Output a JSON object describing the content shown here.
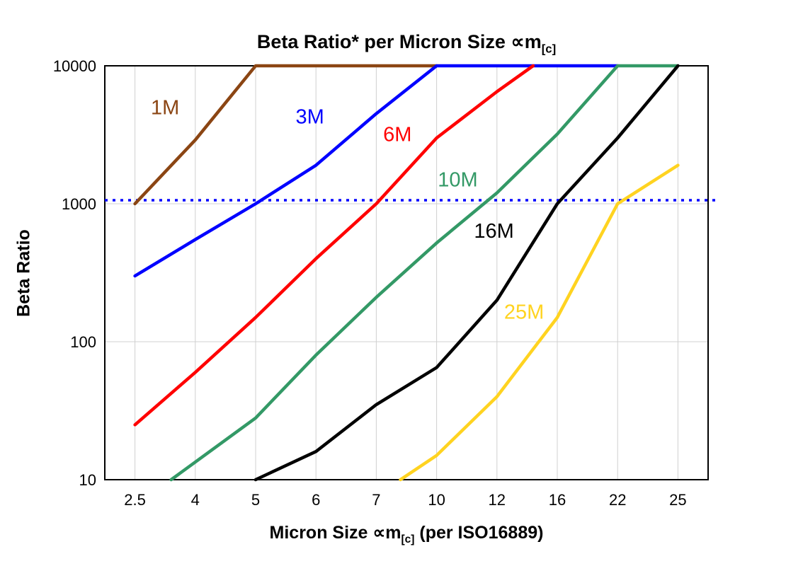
{
  "title": {
    "main": "Beta Ratio* per Micron Size ∝m",
    "sub": "[c]"
  },
  "x_axis": {
    "label_pre": "Micron Size ∝m",
    "label_sub": "[c]",
    "label_post": " (per ISO16889)",
    "categories": [
      "2.5",
      "4",
      "5",
      "6",
      "7",
      "10",
      "12",
      "16",
      "22",
      "25"
    ]
  },
  "y_axis": {
    "label": "Beta Ratio",
    "ticks": [
      10,
      100,
      1000,
      10000
    ],
    "scale": "log",
    "range": [
      10,
      10000
    ]
  },
  "reference_line": {
    "value": 1000,
    "color": "#0000ff",
    "style": "dotted"
  },
  "colors": {
    "grid": "#d0d0d0",
    "axis": "#000000",
    "background": "#ffffff"
  },
  "chart_data": {
    "type": "line",
    "x_mode": "categorical-index",
    "title": "Beta Ratio* per Micron Size ∝m[c]",
    "xlabel": "Micron Size ∝m[c] (per ISO16889)",
    "ylabel": "Beta Ratio",
    "ylim": [
      10,
      10000
    ],
    "grid": true,
    "series": [
      {
        "name": "1M",
        "color": "#8b4513",
        "points": [
          [
            0,
            1000
          ],
          [
            1,
            2900
          ],
          [
            2,
            10000
          ],
          [
            5,
            10000
          ]
        ],
        "label_pos": [
          0.5,
          5000
        ]
      },
      {
        "name": "3M",
        "color": "#0000ff",
        "points": [
          [
            0,
            300
          ],
          [
            1,
            550
          ],
          [
            2,
            1000
          ],
          [
            3,
            1900
          ],
          [
            4,
            4500
          ],
          [
            5,
            10000
          ],
          [
            8,
            10000
          ]
        ],
        "label_pos": [
          2.9,
          4300
        ]
      },
      {
        "name": "6M",
        "color": "#ff0000",
        "points": [
          [
            0,
            25
          ],
          [
            1,
            60
          ],
          [
            2,
            150
          ],
          [
            3,
            400
          ],
          [
            4,
            1000
          ],
          [
            5,
            3000
          ],
          [
            6,
            6500
          ],
          [
            6.6,
            10000
          ]
        ],
        "label_pos": [
          4.35,
          3200
        ]
      },
      {
        "name": "10M",
        "color": "#339966",
        "points": [
          [
            0.6,
            10
          ],
          [
            2,
            28
          ],
          [
            3,
            80
          ],
          [
            4,
            210
          ],
          [
            5,
            520
          ],
          [
            6,
            1200
          ],
          [
            7,
            3200
          ],
          [
            8,
            10000
          ],
          [
            9,
            10000
          ]
        ],
        "label_pos": [
          5.35,
          1500
        ]
      },
      {
        "name": "16M",
        "color": "#000000",
        "points": [
          [
            2,
            10
          ],
          [
            3,
            16
          ],
          [
            4,
            35
          ],
          [
            5,
            65
          ],
          [
            6,
            200
          ],
          [
            7,
            1000
          ],
          [
            8,
            3000
          ],
          [
            9,
            10000
          ]
        ],
        "label_pos": [
          5.95,
          640
        ]
      },
      {
        "name": "25M",
        "color": "#ffd320",
        "points": [
          [
            4.4,
            10
          ],
          [
            5,
            15
          ],
          [
            6,
            40
          ],
          [
            7,
            150
          ],
          [
            8,
            1000
          ],
          [
            9,
            1900
          ]
        ],
        "label_pos": [
          6.45,
          165
        ]
      }
    ]
  }
}
